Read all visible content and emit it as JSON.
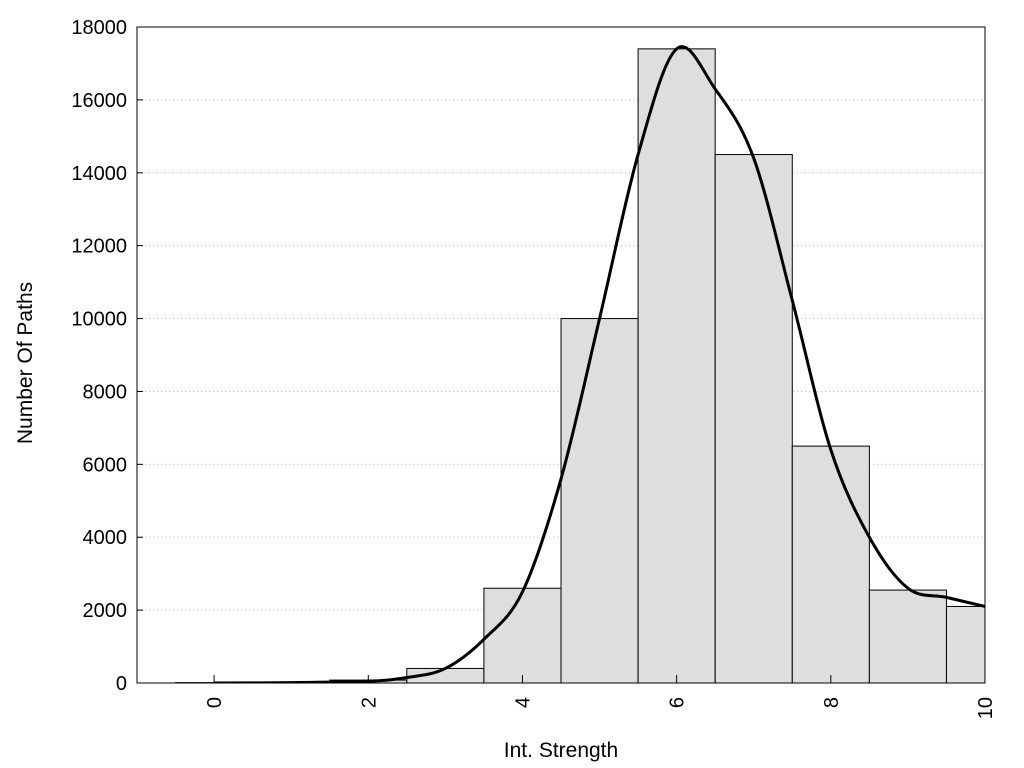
{
  "chart_data": {
    "type": "bar",
    "title": "",
    "xlabel": "Int. Strength",
    "ylabel": "Number Of Paths",
    "xlim": [
      -1,
      10
    ],
    "ylim": [
      0,
      18000
    ],
    "x_ticks": [
      0,
      2,
      4,
      6,
      8,
      10
    ],
    "x_tick_labels": [
      "0",
      "2",
      "4",
      "6",
      "8",
      "10"
    ],
    "y_ticks": [
      0,
      2000,
      4000,
      6000,
      8000,
      10000,
      12000,
      14000,
      16000,
      18000
    ],
    "y_tick_labels": [
      "0",
      "2000",
      "4000",
      "6000",
      "8000",
      "10000",
      "12000",
      "14000",
      "16000",
      "18000"
    ],
    "grid": "horizontal dotted",
    "bar_color": "#dedede",
    "bins": [
      {
        "x": 0,
        "value": 10
      },
      {
        "x": 1,
        "value": 20
      },
      {
        "x": 2,
        "value": 80
      },
      {
        "x": 3,
        "value": 400
      },
      {
        "x": 4,
        "value": 2600
      },
      {
        "x": 5,
        "value": 10000
      },
      {
        "x": 6,
        "value": 17400
      },
      {
        "x": 7,
        "value": 14500
      },
      {
        "x": 8,
        "value": 6500
      },
      {
        "x": 9,
        "value": 2550
      },
      {
        "x": 10,
        "value": 2100
      }
    ],
    "curve": {
      "type": "line",
      "color": "#000000",
      "points": [
        [
          0,
          0
        ],
        [
          1,
          10
        ],
        [
          2,
          50
        ],
        [
          2.5,
          150
        ],
        [
          3,
          400
        ],
        [
          3.5,
          1200
        ],
        [
          4,
          2500
        ],
        [
          4.5,
          5600
        ],
        [
          5,
          10000
        ],
        [
          5.5,
          14500
        ],
        [
          6,
          17400
        ],
        [
          6.5,
          16300
        ],
        [
          7,
          14400
        ],
        [
          7.5,
          10500
        ],
        [
          8,
          6400
        ],
        [
          8.5,
          4000
        ],
        [
          9,
          2600
        ],
        [
          9.5,
          2350
        ],
        [
          10,
          2100
        ]
      ]
    }
  }
}
